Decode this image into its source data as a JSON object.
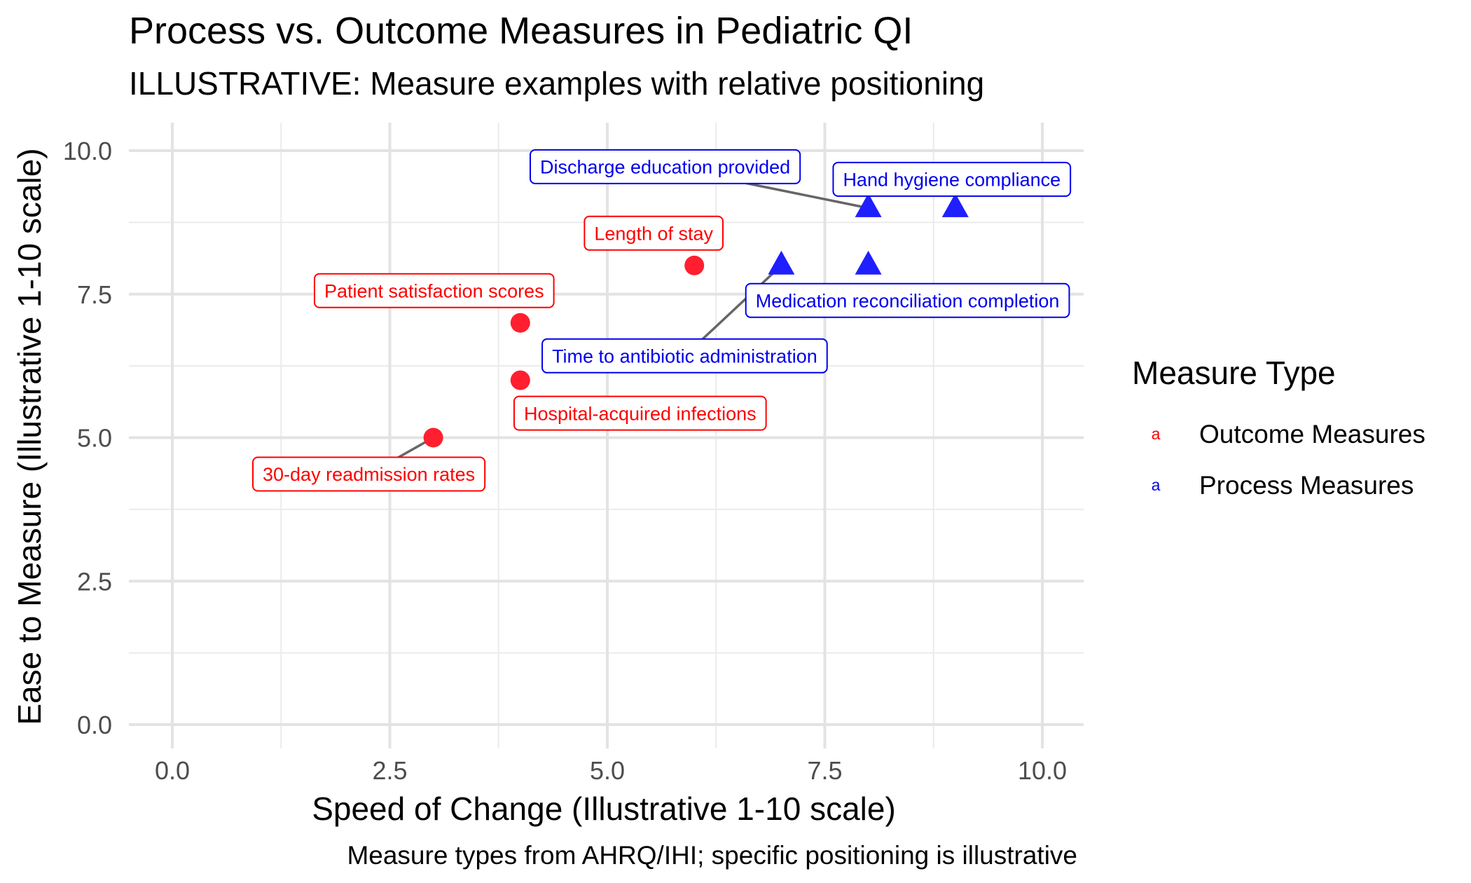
{
  "chart_data": {
    "type": "scatter",
    "title": "Process vs. Outcome Measures in Pediatric QI",
    "subtitle": "ILLUSTRATIVE: Measure examples with relative positioning",
    "xlabel": "Speed of Change (Illustrative 1-10 scale)",
    "ylabel": "Ease to Measure (Illustrative 1-10 scale)",
    "caption": "Measure types from AHRQ/IHI; specific positioning is illustrative",
    "xlim": [
      0,
      10
    ],
    "ylim": [
      0,
      10
    ],
    "x_ticks": [
      "0.0",
      "2.5",
      "5.0",
      "7.5",
      "10.0"
    ],
    "y_ticks": [
      "0.0",
      "2.5",
      "5.0",
      "7.5",
      "10.0"
    ],
    "grid": true,
    "legend": {
      "title": "Measure Type",
      "placement": "right",
      "key_glyph": "a",
      "entries": [
        "Outcome Measures",
        "Process Measures"
      ]
    },
    "series": [
      {
        "name": "Outcome Measures",
        "color": "#ff0000",
        "marker_color": "#ff1f2f",
        "marker": "circle",
        "points": [
          {
            "label": "30-day readmission rates",
            "x": 3,
            "y": 5
          },
          {
            "label": "Patient satisfaction scores",
            "x": 4,
            "y": 7
          },
          {
            "label": "Hospital-acquired infections",
            "x": 4,
            "y": 6
          },
          {
            "label": "Length of stay",
            "x": 6,
            "y": 8
          }
        ]
      },
      {
        "name": "Process Measures",
        "color": "#0000ee",
        "marker_color": "#1f1fff",
        "marker": "triangle",
        "points": [
          {
            "label": "Time to antibiotic administration",
            "x": 7,
            "y": 8
          },
          {
            "label": "Medication reconciliation completion",
            "x": 8,
            "y": 8
          },
          {
            "label": "Discharge education provided",
            "x": 8,
            "y": 9
          },
          {
            "label": "Hand hygiene compliance",
            "x": 9,
            "y": 9
          }
        ]
      }
    ]
  }
}
